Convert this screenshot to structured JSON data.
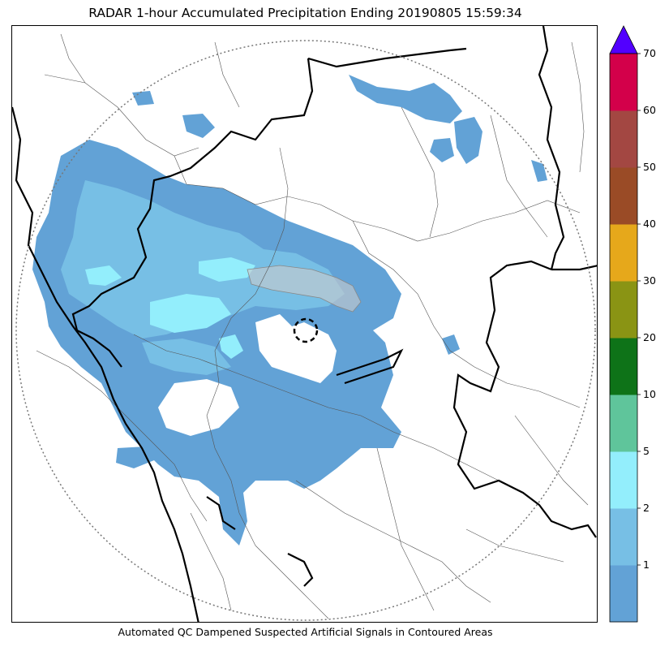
{
  "title": "RADAR 1-hour Accumulated Precipitation Ending 20190805 15:59:34",
  "caption": "Automated QC Dampened Suspected Artificial Signals in Contoured Areas",
  "colorbar": {
    "ticks": [
      "1",
      "2",
      "5",
      "10",
      "20",
      "30",
      "40",
      "50",
      "60",
      "70"
    ],
    "bins": [
      {
        "range": "<1",
        "color": "#62a2d6"
      },
      {
        "range": "1-2",
        "color": "#77bfe5"
      },
      {
        "range": "2-5",
        "color": "#93eefc"
      },
      {
        "range": "5-10",
        "color": "#5fc59b"
      },
      {
        "range": "10-20",
        "color": "#0e7318"
      },
      {
        "range": "20-30",
        "color": "#8a9414"
      },
      {
        "range": "30-40",
        "color": "#e6a81b"
      },
      {
        "range": "40-50",
        "color": "#9a4b26"
      },
      {
        "range": "50-60",
        "color": "#a34742"
      },
      {
        "range": "60-70",
        "color": "#d3004a"
      }
    ],
    "extend_color": "#5200ff"
  },
  "legend_colors": {
    "light_rain": "#62a2d6",
    "moderate_rain": "#77bfe5",
    "heavy_band": "#93eefc"
  }
}
